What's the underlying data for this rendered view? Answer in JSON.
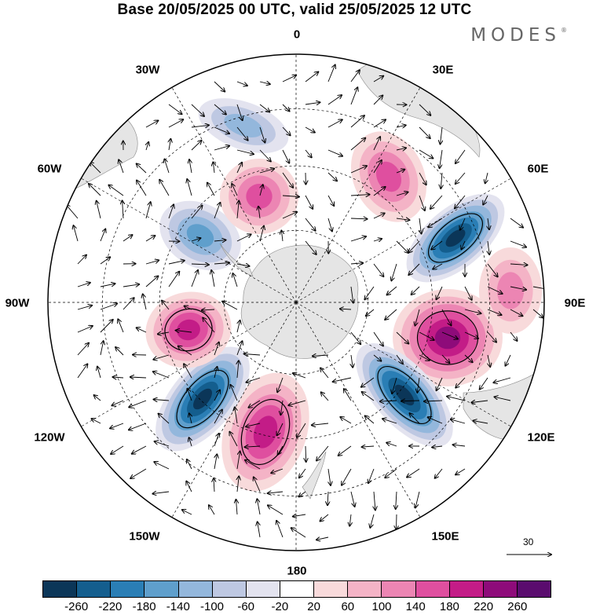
{
  "title": "Base 20/05/2025 00 UTC, valid 25/05/2025 12 UTC",
  "brand": "MODES",
  "brand_mark": "®",
  "map": {
    "projection": "south polar stereographic",
    "center": "South Pole",
    "longitude_labels": {
      "top": "0",
      "top_left": "30W",
      "top_right": "30E",
      "upper_left": "60W",
      "upper_right": "60E",
      "left": "90W",
      "right": "90E",
      "lower_left": "120W",
      "lower_right": "120E",
      "bottom_left": "150W",
      "bottom_right": "150E",
      "bottom": "180"
    },
    "vector_reference": {
      "label": "30",
      "icon": "arrow-right-icon"
    },
    "anomaly_centers": [
      {
        "id": "neg-60E",
        "sign": "negative",
        "value": -260
      },
      {
        "id": "pos-105E",
        "sign": "positive",
        "value": 240
      },
      {
        "id": "neg-140E",
        "sign": "negative",
        "value": -260
      },
      {
        "id": "pos-165W",
        "sign": "positive",
        "value": 180
      },
      {
        "id": "neg-130W",
        "sign": "negative",
        "value": -260
      },
      {
        "id": "pos-95W",
        "sign": "positive",
        "value": 200
      },
      {
        "id": "neg-50W",
        "sign": "negative",
        "value": -160
      },
      {
        "id": "pos-10W",
        "sign": "positive",
        "value": 140
      },
      {
        "id": "pos-30E",
        "sign": "positive",
        "value": 140
      },
      {
        "id": "neg-10W",
        "sign": "negative",
        "value": -100
      },
      {
        "id": "pos-110E",
        "sign": "positive",
        "value": 100
      }
    ]
  },
  "colorbar": {
    "colors": [
      "#0b3658",
      "#145e8e",
      "#2a7eb5",
      "#5f9fcc",
      "#93b7dc",
      "#bec8e2",
      "#e3e3ef",
      "#ffffff",
      "#f8dadb",
      "#f4b3c6",
      "#ec85b3",
      "#df4f9f",
      "#c31c87",
      "#8e0b7a",
      "#5a0c6e"
    ],
    "ticks": [
      "-260",
      "-220",
      "-180",
      "-140",
      "-100",
      "-60",
      "-20",
      "20",
      "60",
      "100",
      "140",
      "180",
      "220",
      "260"
    ]
  }
}
